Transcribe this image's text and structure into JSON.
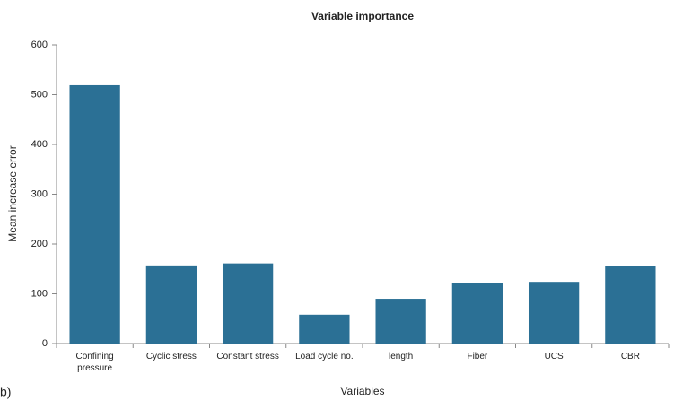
{
  "chart_data": {
    "type": "bar",
    "title": "Variable importance",
    "x_label": "Variables",
    "y_label": "Mean increase error",
    "panel_label": "b)",
    "categories": [
      "Confining pressure",
      "Cyclic stress",
      "Constant stress",
      "Load cycle no.",
      "length",
      "Fiber",
      "UCS",
      "CBR"
    ],
    "values": [
      519,
      157,
      161,
      58,
      90,
      122,
      124,
      155
    ],
    "color": "#2b7095",
    "ylim": [
      0,
      600
    ],
    "yticks": [
      0,
      100,
      200,
      300,
      400,
      500,
      600
    ],
    "grid": false
  }
}
